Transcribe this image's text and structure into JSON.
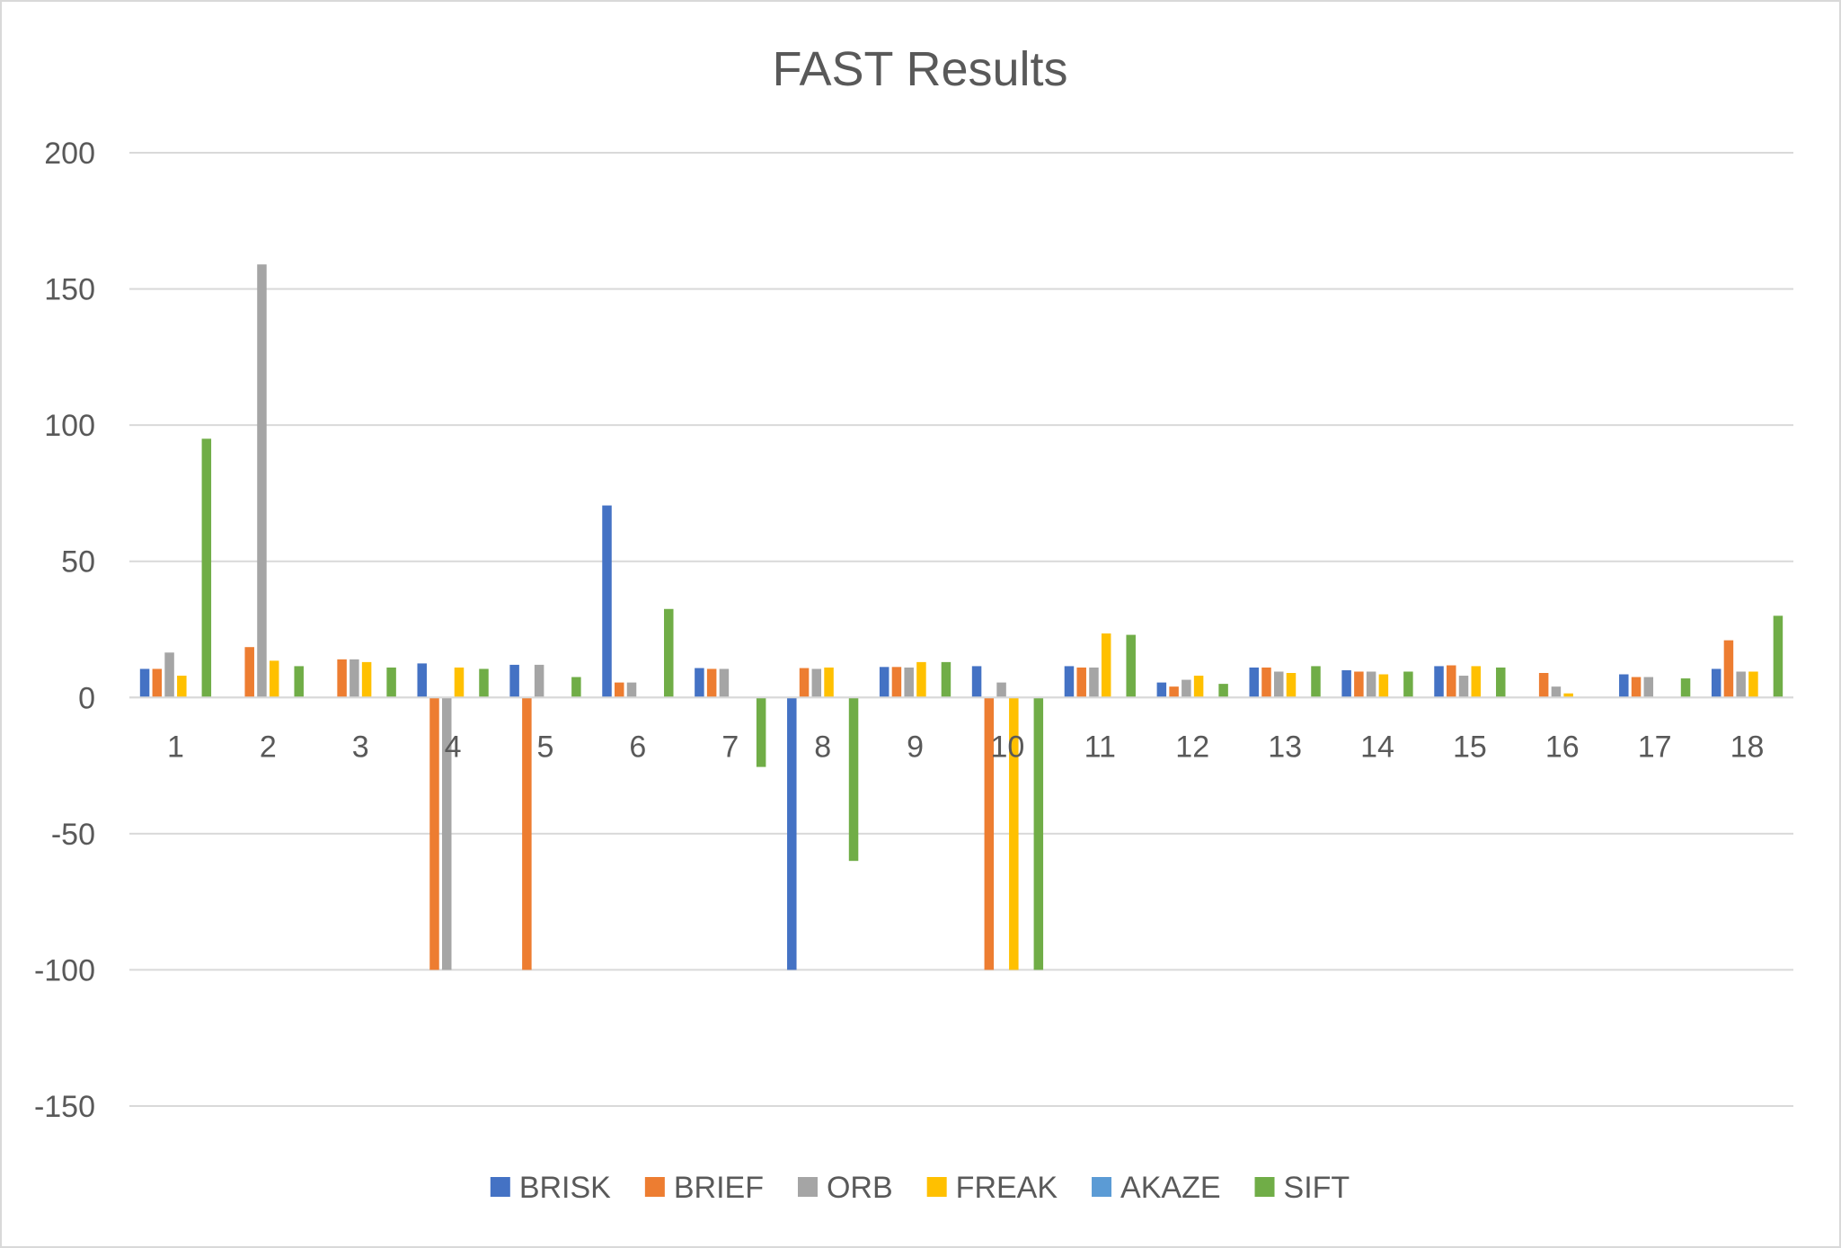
{
  "chart_data": {
    "type": "bar",
    "title": "FAST Results",
    "xlabel": "",
    "ylabel": "",
    "ylim": [
      -150,
      200
    ],
    "yticks": [
      200,
      150,
      100,
      50,
      0,
      -50,
      -100,
      -150
    ],
    "categories": [
      "1",
      "2",
      "3",
      "4",
      "5",
      "6",
      "7",
      "8",
      "9",
      "10",
      "11",
      "12",
      "13",
      "14",
      "15",
      "16",
      "17",
      "18"
    ],
    "grid": true,
    "legend_position": "bottom",
    "series": [
      {
        "name": "BRISK",
        "color": "#4472C4",
        "values": [
          10.5,
          0,
          0,
          12.5,
          12,
          70.5,
          10.8,
          -100,
          11.2,
          11.5,
          11.5,
          5.5,
          11,
          10,
          11.5,
          0,
          8.5,
          10.5
        ]
      },
      {
        "name": "BRIEF",
        "color": "#ED7D31",
        "values": [
          10.5,
          18.5,
          14,
          -100,
          -100,
          5.5,
          10.5,
          10.8,
          11.2,
          -100,
          11,
          4,
          11,
          9.5,
          11.8,
          9,
          7.5,
          21
        ]
      },
      {
        "name": "ORB",
        "color": "#A5A5A5",
        "values": [
          16.5,
          159,
          14,
          -100,
          12,
          5.5,
          10.5,
          10.5,
          11,
          5.5,
          11,
          6.5,
          9.5,
          9.5,
          8,
          4,
          7.5,
          9.5
        ]
      },
      {
        "name": "FREAK",
        "color": "#FFC000",
        "values": [
          8,
          13.5,
          13,
          11,
          0,
          0,
          0,
          11,
          13,
          -100,
          23.5,
          8,
          9,
          8.5,
          11.5,
          1.5,
          0,
          9.5
        ]
      },
      {
        "name": "AKAZE",
        "color": "#5B9BD5",
        "values": [
          0,
          0,
          0,
          0,
          0,
          0,
          0,
          0,
          0,
          0,
          0,
          0,
          0,
          0,
          0,
          0,
          0,
          0
        ]
      },
      {
        "name": "SIFT",
        "color": "#70AD47",
        "values": [
          95,
          11.5,
          11,
          10.5,
          7.5,
          32.5,
          -25.5,
          -60,
          13,
          -100,
          23,
          5,
          11.5,
          9.5,
          11,
          0,
          7,
          30
        ]
      }
    ]
  }
}
